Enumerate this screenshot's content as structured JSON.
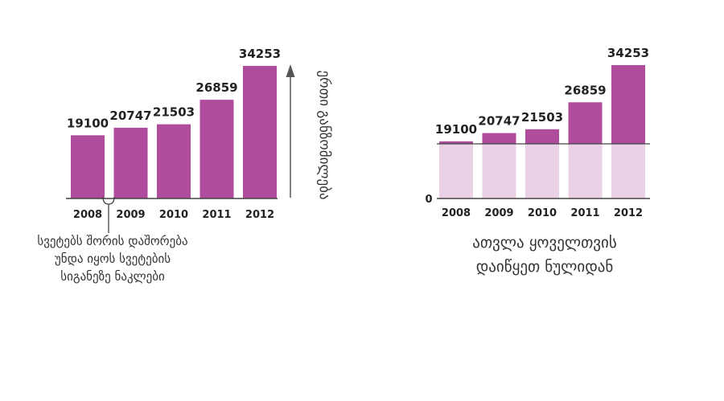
{
  "colors": {
    "bar": "#b04c9c",
    "bar_faded": "#ebd1e6",
    "axis": "#444444",
    "text": "#222222"
  },
  "chart_data": [
    {
      "type": "bar",
      "categories": [
        "2008",
        "2009",
        "2010",
        "2011",
        "2012"
      ],
      "values": [
        19100,
        20747,
        21503,
        26859,
        34253
      ],
      "ylabel": "ერთი განზომილება",
      "annotation": [
        "სვეტებს შორის დაშორება",
        "უნდა იყოს სვეტების",
        "სიგანეზე ნაკლები"
      ],
      "axis_start": "truncated",
      "grid": false
    },
    {
      "type": "bar",
      "categories": [
        "2008",
        "2009",
        "2010",
        "2011",
        "2012"
      ],
      "values": [
        19100,
        20747,
        21503,
        26859,
        34253
      ],
      "zero_label": "0",
      "caption": [
        "ათვლა ყოველთვის",
        "დაიწყეთ ნულიდან"
      ],
      "axis_start": "zero",
      "grid": false
    }
  ]
}
